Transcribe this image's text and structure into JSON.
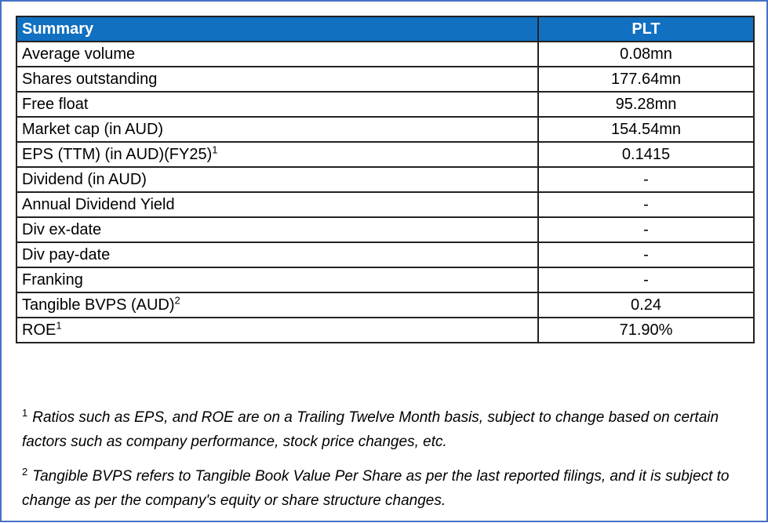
{
  "table": {
    "header": {
      "label": "Summary",
      "ticker": "PLT"
    },
    "rows": [
      {
        "label": "Average volume",
        "sup": "",
        "value": "0.08mn"
      },
      {
        "label": "Shares outstanding",
        "sup": "",
        "value": "177.64mn"
      },
      {
        "label": "Free float",
        "sup": "",
        "value": "95.28mn"
      },
      {
        "label": "Market cap (in AUD)",
        "sup": "",
        "value": "154.54mn"
      },
      {
        "label": "EPS (TTM) (in AUD)(FY25)",
        "sup": "1",
        "value": "0.1415"
      },
      {
        "label": "Dividend (in AUD)",
        "sup": "",
        "value": "-"
      },
      {
        "label": "Annual Dividend Yield",
        "sup": "",
        "value": "-"
      },
      {
        "label": "Div ex-date",
        "sup": "",
        "value": "-"
      },
      {
        "label": "Div pay-date",
        "sup": "",
        "value": "-"
      },
      {
        "label": "Franking",
        "sup": "",
        "value": "-"
      },
      {
        "label": "Tangible BVPS (AUD)",
        "sup": "2",
        "value": "0.24"
      },
      {
        "label": "ROE",
        "sup": "1",
        "value": "71.90%"
      }
    ]
  },
  "notes": [
    {
      "marker": "1",
      "text": "Ratios such as EPS, and ROE are on a Trailing Twelve Month basis, subject to change based on certain factors such as company performance, stock price changes, etc."
    },
    {
      "marker": "2",
      "text": "Tangible BVPS refers to Tangible Book Value Per Share as per the last reported filings, and it is subject to change as per the company's equity or share structure changes."
    }
  ],
  "colors": {
    "header_bg": "#1170c0",
    "frame_border": "#4472c4"
  }
}
